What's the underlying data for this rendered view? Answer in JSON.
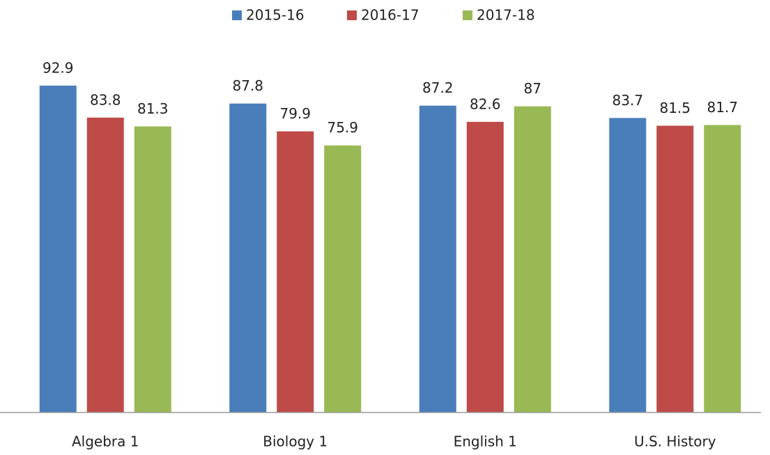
{
  "chart_data": {
    "type": "bar",
    "categories": [
      "Algebra 1",
      "Biology 1",
      "English 1",
      "U.S. History"
    ],
    "series": [
      {
        "name": "2015-16",
        "color": "#4a7ebb",
        "values": [
          92.9,
          87.8,
          87.2,
          83.7
        ]
      },
      {
        "name": "2016-17",
        "color": "#be4b48",
        "values": [
          83.8,
          79.9,
          82.6,
          81.5
        ]
      },
      {
        "name": "2017-18",
        "color": "#98b954",
        "values": [
          81.3,
          75.9,
          87,
          81.7
        ]
      }
    ],
    "ylim": [
      0,
      100
    ],
    "legend": "top"
  }
}
